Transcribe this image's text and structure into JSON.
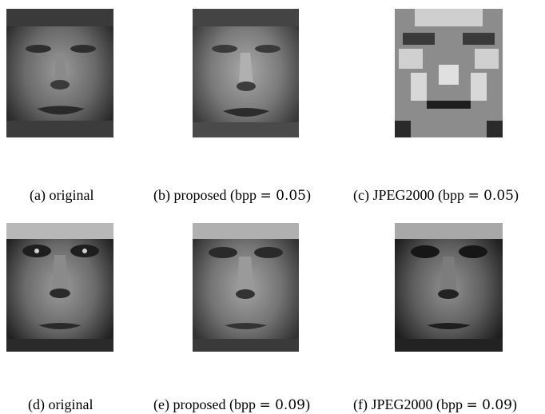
{
  "figure": {
    "panels": [
      {
        "id": "a",
        "caption_prefix": "(a) original",
        "caption_math": "",
        "caption_suffix": "",
        "variant": "original-1"
      },
      {
        "id": "b",
        "caption_prefix": "(b) proposed (bpp ",
        "caption_math": "= 0.05",
        "caption_suffix": ")",
        "variant": "proposed-1"
      },
      {
        "id": "c",
        "caption_prefix": "(c) JPEG2000 (bpp ",
        "caption_math": "= 0.05",
        "caption_suffix": ")",
        "variant": "jpeg-1"
      },
      {
        "id": "d",
        "caption_prefix": "(d) original",
        "caption_math": "",
        "caption_suffix": "",
        "variant": "original-2"
      },
      {
        "id": "e",
        "caption_prefix": "(e) proposed (bpp ",
        "caption_math": "= 0.09",
        "caption_suffix": ")",
        "variant": "proposed-2"
      },
      {
        "id": "f",
        "caption_prefix": "(f) JPEG2000 (bpp ",
        "caption_math": "= 0.09",
        "caption_suffix": ")",
        "variant": "jpeg-2"
      }
    ]
  }
}
